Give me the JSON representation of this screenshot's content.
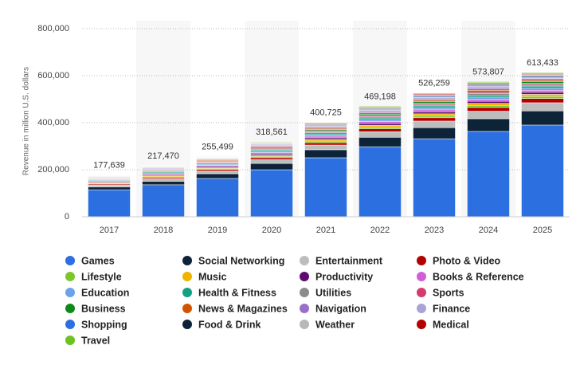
{
  "chart_data": {
    "type": "stacked_bar",
    "y_label": "Revenue in million U.S. dollars",
    "categories": [
      "2017",
      "2018",
      "2019",
      "2020",
      "2021",
      "2022",
      "2023",
      "2024",
      "2025"
    ],
    "totals": [
      177639,
      217470,
      255499,
      318561,
      400725,
      469198,
      526259,
      573807,
      613433
    ],
    "total_labels": [
      "177,639",
      "217,470",
      "255,499",
      "318,561",
      "400,725",
      "469,198",
      "526,259",
      "573,807",
      "613,433"
    ],
    "ylim": [
      0,
      800000
    ],
    "yticks": [
      0,
      {
        "value": 200000,
        "label": "200,000"
      },
      {
        "value": 400000,
        "label": "400,000"
      },
      {
        "value": 600000,
        "label": "600,000"
      },
      {
        "value": 800000,
        "label": "800,000"
      }
    ],
    "grid": true,
    "series": [
      {
        "name": "Games",
        "color": "#2b6fe0",
        "values": [
          115000,
          136000,
          163000,
          200000,
          251000,
          298000,
          332000,
          363000,
          390000
        ]
      },
      {
        "name": "Social Networking",
        "color": "#0c2338",
        "values": [
          12000,
          15000,
          20000,
          27000,
          34000,
          40000,
          47000,
          54000,
          60000
        ]
      },
      {
        "name": "Entertainment",
        "color": "#bdbdbd",
        "values": [
          8000,
          10000,
          12000,
          16000,
          20000,
          24000,
          28000,
          32000,
          35000
        ]
      },
      {
        "name": "Photo & Video",
        "color": "#b30000",
        "values": [
          4000,
          5000,
          6000,
          8000,
          10000,
          12000,
          14000,
          16000,
          18000
        ]
      },
      {
        "name": "Lifestyle",
        "color": "#7cc62e",
        "values": [
          3100,
          4200,
          4400,
          5500,
          6900,
          7700,
          8400,
          8800,
          8800
        ]
      },
      {
        "name": "Music",
        "color": "#f0b400",
        "values": [
          3100,
          4200,
          4400,
          5500,
          6900,
          7700,
          8400,
          8800,
          8800
        ]
      },
      {
        "name": "Productivity",
        "color": "#5c0b6e",
        "values": [
          3100,
          4200,
          4400,
          5500,
          6900,
          7700,
          8400,
          8800,
          8800
        ]
      },
      {
        "name": "Books & Reference",
        "color": "#d05fd6",
        "values": [
          3100,
          4200,
          4400,
          5500,
          6900,
          7700,
          8400,
          8800,
          8800
        ]
      },
      {
        "name": "Education",
        "color": "#6ca3e8",
        "values": [
          3100,
          4200,
          4400,
          5500,
          6900,
          7700,
          8400,
          8800,
          8800
        ]
      },
      {
        "name": "Health & Fitness",
        "color": "#13a085",
        "values": [
          3100,
          4200,
          4400,
          5500,
          6900,
          7700,
          8400,
          8800,
          8800
        ]
      },
      {
        "name": "Utilities",
        "color": "#8c8c8c",
        "values": [
          2200,
          3000,
          3100,
          3900,
          4900,
          5500,
          6000,
          6300,
          6300
        ]
      },
      {
        "name": "Sports",
        "color": "#d63a6e",
        "values": [
          2200,
          3000,
          3100,
          3900,
          4900,
          5500,
          6000,
          6300,
          6300
        ]
      },
      {
        "name": "Business",
        "color": "#0f8a1a",
        "values": [
          2200,
          3000,
          3100,
          3900,
          4900,
          5500,
          6000,
          6300,
          6300
        ]
      },
      {
        "name": "News & Magazines",
        "color": "#d35400",
        "values": [
          2200,
          3000,
          3100,
          3900,
          4900,
          5500,
          6000,
          6300,
          6300
        ]
      },
      {
        "name": "Navigation",
        "color": "#9b6fc7",
        "values": [
          2200,
          3000,
          3100,
          3900,
          4900,
          5500,
          6000,
          6300,
          6300
        ]
      },
      {
        "name": "Finance",
        "color": "#a9a4d6",
        "values": [
          2200,
          3000,
          3100,
          3900,
          4900,
          5500,
          6000,
          6300,
          6300
        ]
      },
      {
        "name": "Shopping",
        "color": "#2d6fe0",
        "values": [
          1300,
          1800,
          1900,
          2300,
          2900,
          3300,
          3600,
          3800,
          3800
        ]
      },
      {
        "name": "Food & Drink",
        "color": "#0d2236",
        "values": [
          1300,
          1800,
          1900,
          2300,
          2900,
          3300,
          3600,
          3800,
          3800
        ]
      },
      {
        "name": "Weather",
        "color": "#b8b8b8",
        "values": [
          1300,
          1800,
          1900,
          2300,
          2900,
          3300,
          3600,
          3800,
          3800
        ]
      },
      {
        "name": "Medical",
        "color": "#b50000",
        "values": [
          1300,
          1800,
          1900,
          2300,
          2900,
          3300,
          3600,
          3800,
          3800
        ]
      },
      {
        "name": "Travel",
        "color": "#6cc21e",
        "values": [
          1300,
          1800,
          1900,
          2300,
          2900,
          3300,
          3600,
          3800,
          3800
        ]
      }
    ]
  }
}
